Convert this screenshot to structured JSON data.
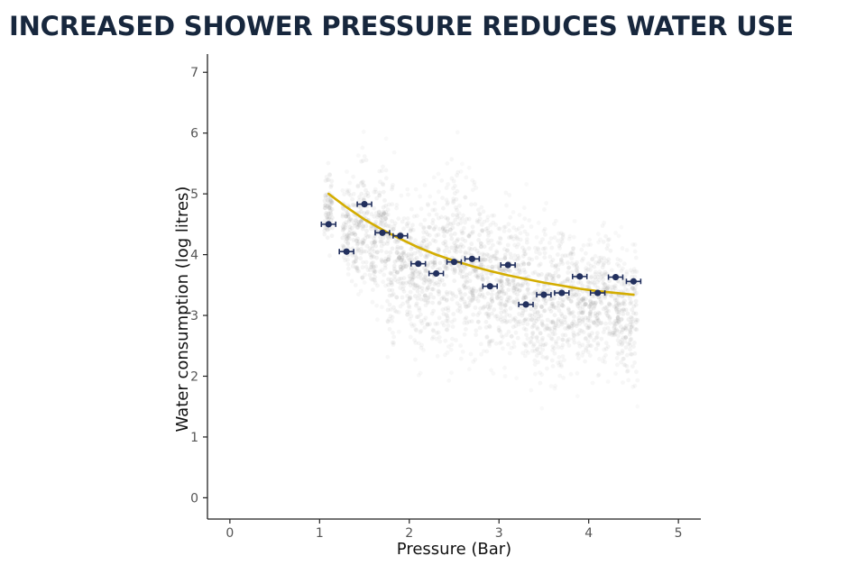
{
  "chart_data": {
    "type": "scatter",
    "title": "INCREASED SHOWER PRESSURE REDUCES WATER USE",
    "xlabel": "Pressure (Bar)",
    "ylabel": "Water consumption (log litres)",
    "xlim": [
      -0.25,
      5.25
    ],
    "ylim": [
      -0.35,
      7.3
    ],
    "x_ticks": [
      0,
      1,
      2,
      3,
      4,
      5
    ],
    "y_ticks": [
      0,
      1,
      2,
      3,
      4,
      5,
      6,
      7
    ],
    "grid": false,
    "legend": "none",
    "series": [
      {
        "kind": "mean_with_error_bars",
        "x": [
          1.1,
          1.3,
          1.5,
          1.7,
          1.9,
          2.1,
          2.3,
          2.5,
          2.7,
          2.9,
          3.1,
          3.3,
          3.5,
          3.7,
          3.9,
          4.1,
          4.3,
          4.5
        ],
        "y": [
          4.5,
          4.05,
          4.83,
          4.36,
          4.31,
          3.85,
          3.69,
          3.88,
          3.93,
          3.48,
          3.83,
          3.18,
          3.34,
          3.37,
          3.64,
          3.37,
          3.63,
          3.56
        ],
        "x_err": [
          0.08,
          0.08,
          0.08,
          0.08,
          0.08,
          0.08,
          0.08,
          0.08,
          0.08,
          0.08,
          0.08,
          0.08,
          0.08,
          0.08,
          0.08,
          0.08,
          0.08,
          0.08
        ]
      },
      {
        "kind": "fitted_curve",
        "x": [
          1.1,
          1.3,
          1.5,
          1.7,
          1.9,
          2.1,
          2.3,
          2.5,
          2.7,
          2.9,
          3.1,
          3.3,
          3.5,
          3.7,
          3.9,
          4.1,
          4.3,
          4.5
        ],
        "y": [
          5.0,
          4.78,
          4.58,
          4.41,
          4.26,
          4.12,
          4.0,
          3.9,
          3.81,
          3.73,
          3.66,
          3.6,
          3.54,
          3.49,
          3.44,
          3.4,
          3.37,
          3.34
        ]
      },
      {
        "kind": "raw_observation_cloud",
        "x": [
          1.1,
          1.3,
          1.4,
          1.5,
          1.6,
          1.7,
          1.8,
          1.9,
          2.0,
          2.1,
          2.2,
          2.3,
          2.4,
          2.5,
          2.6,
          2.7,
          2.8,
          2.9,
          3.0,
          3.1,
          3.2,
          3.3,
          3.4,
          3.5,
          3.6,
          3.7,
          3.8,
          3.9,
          4.0,
          4.1,
          4.2,
          4.3,
          4.4,
          4.5
        ],
        "y_min": [
          3.5,
          3.2,
          2.8,
          2.9,
          2.6,
          2.8,
          1.7,
          2.4,
          2.2,
          1.7,
          1.9,
          1.7,
          1.5,
          1.5,
          1.7,
          1.6,
          1.7,
          1.6,
          1.9,
          1.6,
          1.8,
          1.5,
          1.4,
          1.3,
          1.4,
          1.5,
          1.5,
          1.6,
          1.5,
          1.6,
          1.6,
          1.6,
          1.5,
          1.4
        ],
        "y_max": [
          6.0,
          5.6,
          5.9,
          6.4,
          5.8,
          6.1,
          6.1,
          5.4,
          5.5,
          5.6,
          5.6,
          5.8,
          6.2,
          6.6,
          5.8,
          5.9,
          5.7,
          5.5,
          5.2,
          5.5,
          5.1,
          5.4,
          4.9,
          5.3,
          5.0,
          5.1,
          4.9,
          4.8,
          4.8,
          4.6,
          5.2,
          4.6,
          4.5,
          4.6
        ]
      }
    ],
    "colors": {
      "points": "#22305e",
      "curve": "#d4ad00",
      "cloud": "#9a9a9a",
      "title": "#17273d"
    }
  }
}
